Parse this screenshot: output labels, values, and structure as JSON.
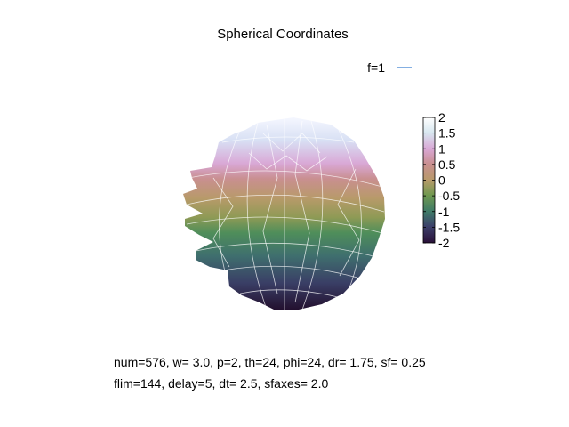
{
  "chart_data": {
    "type": "surface",
    "title": "Spherical Coordinates",
    "legend": {
      "placement": "top-right",
      "entries": [
        {
          "name": "f=1",
          "color": "#3a7fd0"
        }
      ]
    },
    "surface": {
      "coordinate_system": "spherical",
      "style": "pm3d with white wireframe",
      "color_range": [
        -2,
        2
      ],
      "colorbar_ticks": [
        2,
        1.5,
        1,
        0.5,
        0,
        -0.5,
        -1,
        -1.5,
        -2
      ],
      "colorbar_tick_labels": [
        "2",
        "1.5",
        "1",
        "0.5",
        "0",
        "-0.5",
        "-1",
        "-1.5",
        "-2"
      ],
      "palette": [
        "#2a1038",
        "#3c3f6a",
        "#3e7a68",
        "#6f9950",
        "#b89a6a",
        "#c98f90",
        "#d9a8d6",
        "#d8e0f4",
        "#ffffff"
      ]
    },
    "parameters_line1": "num=576, w=  3.0, p=2, th=24, phi=24, dr= 1.75, sf= 0.25",
    "parameters_line2": "flim=144, delay=5, dt=  2.5, sfaxes=  2.0"
  }
}
